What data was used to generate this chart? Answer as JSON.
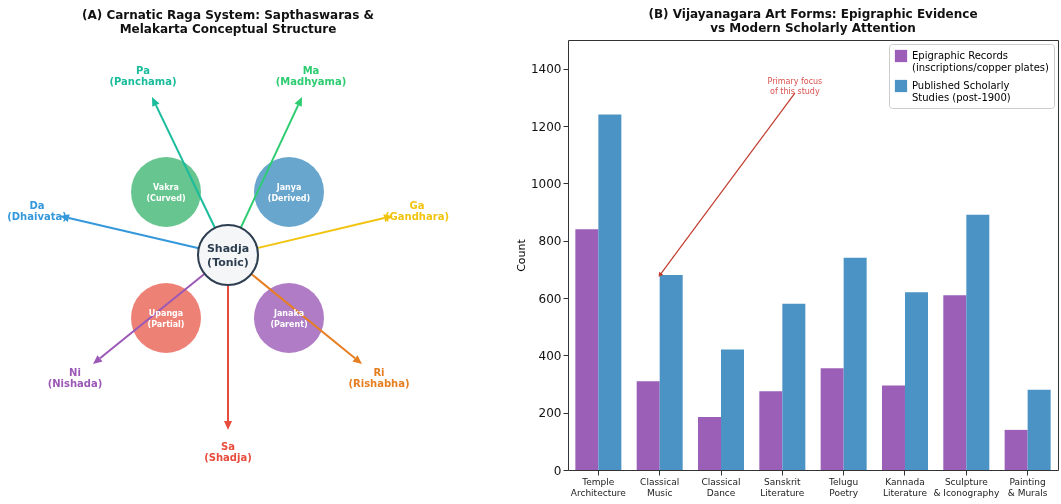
{
  "chart_data": [
    {
      "type": "other",
      "title": "(A) Carnatic Raga System: Sapthaswaras &\nMelakarta Conceptual Structure",
      "annotations": [
        "Sa\n(Shadja)",
        "Ri\n(Rishabha)",
        "Ga\n(Gandhara)",
        "Ma\n(Madhyama)",
        "Pa\n(Panchama)",
        "Da\n(Dhaivata)",
        "Ni\n(Nishada)",
        "Shadja\n(Tonic)",
        "Vakra\n(Curved)",
        "Janya\n(Derived)",
        "Upanga\n(Partial)",
        "Janaka\n(Parent)"
      ]
    },
    {
      "type": "bar",
      "title": "(B) Vijayanagara Art Forms: Epigraphic Evidence\nvs Modern Scholarly Attention",
      "ylabel": "Count",
      "categories": [
        "Temple\nArchitecture",
        "Classical\nMusic",
        "Classical\nDance",
        "Sanskrit\nLiterature",
        "Telugu\nPoetry",
        "Kannada\nLiterature",
        "Sculpture\n& Iconography",
        "Painting\n& Murals"
      ],
      "series": [
        {
          "name": "Epigraphic Records\n(inscriptions/copper plates)",
          "color": "#9b5fb8",
          "values": [
            840,
            310,
            185,
            275,
            355,
            295,
            610,
            140
          ]
        },
        {
          "name": "Published Scholarly\nStudies (post-1900)",
          "color": "#4a93c4",
          "values": [
            1240,
            680,
            420,
            580,
            740,
            620,
            890,
            280
          ]
        }
      ],
      "ylim": [
        0,
        1500
      ],
      "yticks": [
        0,
        200,
        400,
        600,
        800,
        1000,
        1200,
        1400
      ],
      "legend": "top right",
      "annotations": [
        {
          "text": "Primary focus\nof this study",
          "x": "Classical\nMusic",
          "y": 680
        }
      ]
    }
  ]
}
